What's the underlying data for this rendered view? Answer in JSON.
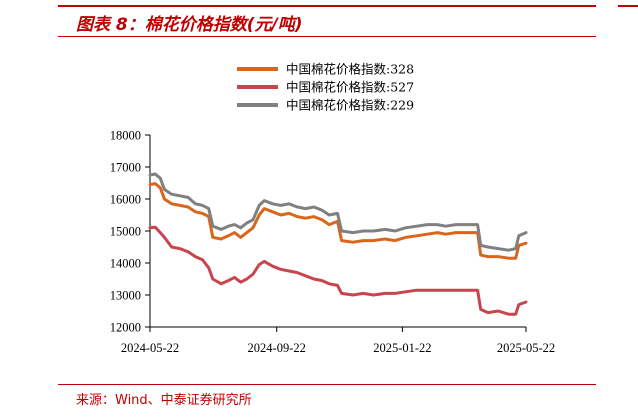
{
  "header": {
    "title": "图表 8：棉花价格指数(元/吨)"
  },
  "footer": {
    "source": "来源：Wind、中泰证券研究所"
  },
  "chart_data": {
    "type": "line",
    "title": "棉花价格指数(元/吨)",
    "xlabel": "",
    "ylabel": "",
    "ylim": [
      12000,
      18000
    ],
    "yticks": [
      12000,
      13000,
      14000,
      15000,
      16000,
      17000,
      18000
    ],
    "xticks": [
      "2024-05-22",
      "2024-09-22",
      "2025-01-22",
      "2025-05-22"
    ],
    "legend_position": "top-center",
    "x_start": "2024-05-22",
    "x_end": "2025-05-22",
    "series": [
      {
        "name": "中国棉花价格指数:328",
        "color": "#d9661c",
        "points": [
          [
            "2024-05-22",
            16450
          ],
          [
            "2024-05-27",
            16480
          ],
          [
            "2024-06-01",
            16350
          ],
          [
            "2024-06-05",
            16000
          ],
          [
            "2024-06-12",
            15850
          ],
          [
            "2024-06-20",
            15800
          ],
          [
            "2024-06-28",
            15750
          ],
          [
            "2024-07-05",
            15600
          ],
          [
            "2024-07-12",
            15550
          ],
          [
            "2024-07-18",
            15450
          ],
          [
            "2024-07-22",
            14800
          ],
          [
            "2024-07-30",
            14750
          ],
          [
            "2024-08-06",
            14850
          ],
          [
            "2024-08-12",
            14950
          ],
          [
            "2024-08-18",
            14800
          ],
          [
            "2024-08-24",
            14950
          ],
          [
            "2024-08-30",
            15100
          ],
          [
            "2024-09-05",
            15500
          ],
          [
            "2024-09-10",
            15700
          ],
          [
            "2024-09-18",
            15600
          ],
          [
            "2024-09-26",
            15500
          ],
          [
            "2024-10-04",
            15550
          ],
          [
            "2024-10-12",
            15450
          ],
          [
            "2024-10-20",
            15400
          ],
          [
            "2024-10-28",
            15450
          ],
          [
            "2024-11-05",
            15350
          ],
          [
            "2024-11-12",
            15200
          ],
          [
            "2024-11-20",
            15300
          ],
          [
            "2024-11-24",
            14700
          ],
          [
            "2024-12-05",
            14650
          ],
          [
            "2024-12-15",
            14700
          ],
          [
            "2024-12-25",
            14700
          ],
          [
            "2025-01-05",
            14750
          ],
          [
            "2025-01-15",
            14700
          ],
          [
            "2025-01-25",
            14800
          ],
          [
            "2025-02-05",
            14850
          ],
          [
            "2025-02-15",
            14900
          ],
          [
            "2025-02-25",
            14950
          ],
          [
            "2025-03-05",
            14900
          ],
          [
            "2025-03-15",
            14950
          ],
          [
            "2025-03-25",
            14950
          ],
          [
            "2025-04-01",
            14950
          ],
          [
            "2025-04-05",
            14950
          ],
          [
            "2025-04-08",
            14250
          ],
          [
            "2025-04-15",
            14200
          ],
          [
            "2025-04-25",
            14200
          ],
          [
            "2025-05-05",
            14150
          ],
          [
            "2025-05-12",
            14150
          ],
          [
            "2025-05-15",
            14550
          ],
          [
            "2025-05-22",
            14620
          ]
        ]
      },
      {
        "name": "中国棉花价格指数:527",
        "color": "#c8454e",
        "points": [
          [
            "2024-05-22",
            15100
          ],
          [
            "2024-05-27",
            15120
          ],
          [
            "2024-06-01",
            14950
          ],
          [
            "2024-06-05",
            14800
          ],
          [
            "2024-06-12",
            14500
          ],
          [
            "2024-06-20",
            14450
          ],
          [
            "2024-06-28",
            14350
          ],
          [
            "2024-07-05",
            14200
          ],
          [
            "2024-07-12",
            14100
          ],
          [
            "2024-07-18",
            13850
          ],
          [
            "2024-07-22",
            13500
          ],
          [
            "2024-07-30",
            13350
          ],
          [
            "2024-08-06",
            13450
          ],
          [
            "2024-08-12",
            13550
          ],
          [
            "2024-08-18",
            13400
          ],
          [
            "2024-08-24",
            13500
          ],
          [
            "2024-08-30",
            13650
          ],
          [
            "2024-09-05",
            13950
          ],
          [
            "2024-09-10",
            14050
          ],
          [
            "2024-09-18",
            13900
          ],
          [
            "2024-09-26",
            13800
          ],
          [
            "2024-10-04",
            13750
          ],
          [
            "2024-10-12",
            13700
          ],
          [
            "2024-10-20",
            13600
          ],
          [
            "2024-10-28",
            13500
          ],
          [
            "2024-11-05",
            13450
          ],
          [
            "2024-11-12",
            13350
          ],
          [
            "2024-11-20",
            13300
          ],
          [
            "2024-11-24",
            13050
          ],
          [
            "2024-12-05",
            13000
          ],
          [
            "2024-12-15",
            13050
          ],
          [
            "2024-12-25",
            13000
          ],
          [
            "2025-01-05",
            13050
          ],
          [
            "2025-01-15",
            13050
          ],
          [
            "2025-01-25",
            13100
          ],
          [
            "2025-02-05",
            13150
          ],
          [
            "2025-02-15",
            13150
          ],
          [
            "2025-02-25",
            13150
          ],
          [
            "2025-03-05",
            13150
          ],
          [
            "2025-03-15",
            13150
          ],
          [
            "2025-03-25",
            13150
          ],
          [
            "2025-04-01",
            13150
          ],
          [
            "2025-04-05",
            13150
          ],
          [
            "2025-04-08",
            12550
          ],
          [
            "2025-04-15",
            12450
          ],
          [
            "2025-04-25",
            12500
          ],
          [
            "2025-05-05",
            12400
          ],
          [
            "2025-05-12",
            12400
          ],
          [
            "2025-05-15",
            12700
          ],
          [
            "2025-05-22",
            12780
          ]
        ]
      },
      {
        "name": "中国棉花价格指数:229",
        "color": "#808080",
        "points": [
          [
            "2024-05-22",
            16750
          ],
          [
            "2024-05-27",
            16780
          ],
          [
            "2024-06-01",
            16650
          ],
          [
            "2024-06-05",
            16300
          ],
          [
            "2024-06-12",
            16150
          ],
          [
            "2024-06-20",
            16100
          ],
          [
            "2024-06-28",
            16050
          ],
          [
            "2024-07-05",
            15850
          ],
          [
            "2024-07-12",
            15800
          ],
          [
            "2024-07-18",
            15700
          ],
          [
            "2024-07-22",
            15150
          ],
          [
            "2024-07-30",
            15050
          ],
          [
            "2024-08-06",
            15150
          ],
          [
            "2024-08-12",
            15200
          ],
          [
            "2024-08-18",
            15100
          ],
          [
            "2024-08-24",
            15250
          ],
          [
            "2024-08-30",
            15350
          ],
          [
            "2024-09-05",
            15800
          ],
          [
            "2024-09-10",
            15950
          ],
          [
            "2024-09-18",
            15850
          ],
          [
            "2024-09-26",
            15800
          ],
          [
            "2024-10-04",
            15850
          ],
          [
            "2024-10-12",
            15750
          ],
          [
            "2024-10-20",
            15700
          ],
          [
            "2024-10-28",
            15750
          ],
          [
            "2024-11-05",
            15650
          ],
          [
            "2024-11-12",
            15500
          ],
          [
            "2024-11-20",
            15550
          ],
          [
            "2024-11-24",
            15000
          ],
          [
            "2024-12-05",
            14950
          ],
          [
            "2024-12-15",
            15000
          ],
          [
            "2024-12-25",
            15000
          ],
          [
            "2025-01-05",
            15050
          ],
          [
            "2025-01-15",
            15000
          ],
          [
            "2025-01-25",
            15100
          ],
          [
            "2025-02-05",
            15150
          ],
          [
            "2025-02-15",
            15200
          ],
          [
            "2025-02-25",
            15200
          ],
          [
            "2025-03-05",
            15150
          ],
          [
            "2025-03-15",
            15200
          ],
          [
            "2025-03-25",
            15200
          ],
          [
            "2025-04-01",
            15200
          ],
          [
            "2025-04-05",
            15200
          ],
          [
            "2025-04-08",
            14550
          ],
          [
            "2025-04-15",
            14500
          ],
          [
            "2025-04-25",
            14450
          ],
          [
            "2025-05-05",
            14400
          ],
          [
            "2025-05-12",
            14450
          ],
          [
            "2025-05-15",
            14850
          ],
          [
            "2025-05-22",
            14950
          ]
        ]
      }
    ]
  }
}
